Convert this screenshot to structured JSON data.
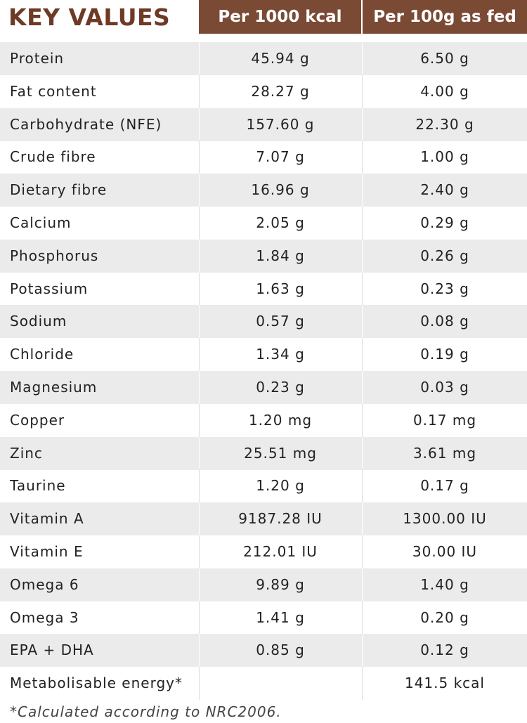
{
  "header": {
    "title": "KEY VALUES",
    "columns": [
      "Per 1000 kcal",
      "Per 100g as fed"
    ]
  },
  "table": {
    "rows": [
      [
        "Protein",
        "45.94 g",
        "6.50 g"
      ],
      [
        "Fat content",
        "28.27 g",
        "4.00 g"
      ],
      [
        "Carbohydrate (NFE)",
        "157.60 g",
        "22.30 g"
      ],
      [
        "Crude fibre",
        "7.07 g",
        "1.00 g"
      ],
      [
        "Dietary fibre",
        "16.96 g",
        "2.40 g"
      ],
      [
        "Calcium",
        "2.05 g",
        "0.29 g"
      ],
      [
        "Phosphorus",
        "1.84 g",
        "0.26 g"
      ],
      [
        "Potassium",
        "1.63 g",
        "0.23 g"
      ],
      [
        "Sodium",
        "0.57 g",
        "0.08 g"
      ],
      [
        "Chloride",
        "1.34 g",
        "0.19 g"
      ],
      [
        "Magnesium",
        "0.23 g",
        "0.03 g"
      ],
      [
        "Copper",
        "1.20 mg",
        "0.17 mg"
      ],
      [
        "Zinc",
        "25.51 mg",
        "3.61 mg"
      ],
      [
        "Taurine",
        "1.20 g",
        "0.17 g"
      ],
      [
        "Vitamin A",
        "9187.28 IU",
        "1300.00 IU"
      ],
      [
        "Vitamin E",
        "212.01 IU",
        "30.00 IU"
      ],
      [
        "Omega 6",
        "9.89 g",
        "1.40 g"
      ],
      [
        "Omega 3",
        "1.41 g",
        "0.20 g"
      ],
      [
        "EPA + DHA",
        "0.85 g",
        "0.12 g"
      ],
      [
        "Metabolisable energy*",
        null,
        "141.5 kcal"
      ]
    ]
  },
  "footnote": "*Calculated according to NRC2006."
}
